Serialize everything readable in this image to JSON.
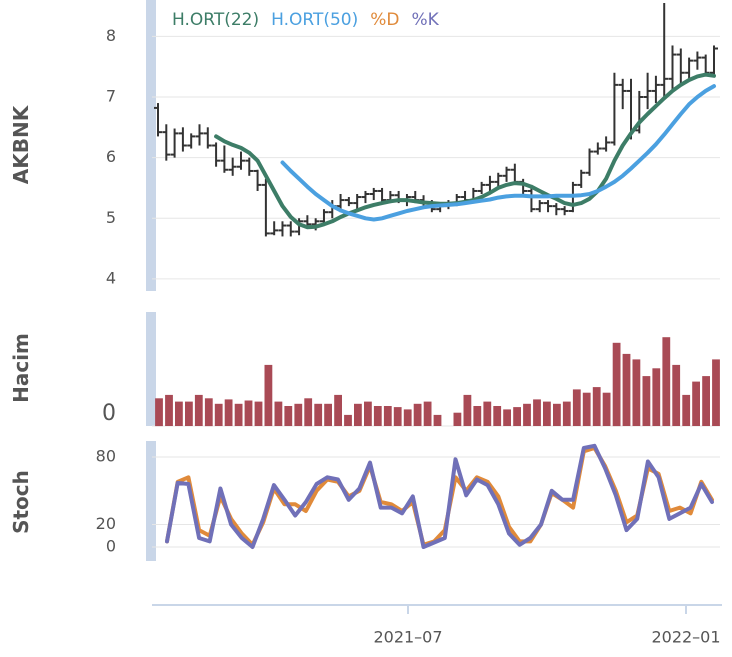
{
  "chart_data": [
    {
      "type": "ohlc",
      "panel": "price",
      "ylabel": "AKBNK",
      "yticks": [
        "8",
        "7",
        "6",
        "5",
        "4"
      ],
      "ylim": [
        3.8,
        8.6
      ],
      "legend": [
        {
          "label": "H.ORT(22)",
          "color": "#3d7d67"
        },
        {
          "label": "H.ORT(50)",
          "color": "#4ba0e0"
        },
        {
          "label": "%D",
          "color": "#e08a3a"
        },
        {
          "label": "%K",
          "color": "#7070b8"
        }
      ],
      "legend_position": "top-left",
      "bar_color": "#333333",
      "bars": [
        [
          6.82,
          6.9,
          6.35,
          6.42
        ],
        [
          6.42,
          6.55,
          5.95,
          6.05
        ],
        [
          6.05,
          6.48,
          6.0,
          6.4
        ],
        [
          6.4,
          6.5,
          6.1,
          6.2
        ],
        [
          6.2,
          6.4,
          6.15,
          6.35
        ],
        [
          6.35,
          6.55,
          6.2,
          6.4
        ],
        [
          6.4,
          6.5,
          6.15,
          6.2
        ],
        [
          6.2,
          6.25,
          5.85,
          5.95
        ],
        [
          5.95,
          6.2,
          5.75,
          5.8
        ],
        [
          5.8,
          6.0,
          5.7,
          5.85
        ],
        [
          5.85,
          6.1,
          5.8,
          5.95
        ],
        [
          5.95,
          6.0,
          5.7,
          5.78
        ],
        [
          5.78,
          5.8,
          5.45,
          5.55
        ],
        [
          5.55,
          5.65,
          4.7,
          4.75
        ],
        [
          4.75,
          4.95,
          4.72,
          4.8
        ],
        [
          4.8,
          4.95,
          4.7,
          4.88
        ],
        [
          4.88,
          4.95,
          4.7,
          4.78
        ],
        [
          4.78,
          5.0,
          4.72,
          4.95
        ],
        [
          4.95,
          5.05,
          4.85,
          4.9
        ],
        [
          4.9,
          5.0,
          4.8,
          4.95
        ],
        [
          4.95,
          5.15,
          4.9,
          5.1
        ],
        [
          5.1,
          5.3,
          5.0,
          5.2
        ],
        [
          5.2,
          5.4,
          5.1,
          5.3
        ],
        [
          5.3,
          5.35,
          5.2,
          5.25
        ],
        [
          5.25,
          5.4,
          5.15,
          5.35
        ],
        [
          5.35,
          5.45,
          5.25,
          5.4
        ],
        [
          5.4,
          5.5,
          5.3,
          5.45
        ],
        [
          5.45,
          5.5,
          5.25,
          5.3
        ],
        [
          5.3,
          5.45,
          5.25,
          5.38
        ],
        [
          5.38,
          5.45,
          5.25,
          5.3
        ],
        [
          5.3,
          5.4,
          5.2,
          5.35
        ],
        [
          5.35,
          5.45,
          5.25,
          5.3
        ],
        [
          5.3,
          5.38,
          5.2,
          5.25
        ],
        [
          5.25,
          5.3,
          5.1,
          5.15
        ],
        [
          5.15,
          5.25,
          5.1,
          5.2
        ],
        [
          5.2,
          5.3,
          5.15,
          5.25
        ],
        [
          5.25,
          5.4,
          5.2,
          5.35
        ],
        [
          5.35,
          5.45,
          5.25,
          5.3
        ],
        [
          5.3,
          5.5,
          5.25,
          5.45
        ],
        [
          5.45,
          5.6,
          5.4,
          5.55
        ],
        [
          5.55,
          5.7,
          5.45,
          5.6
        ],
        [
          5.6,
          5.75,
          5.5,
          5.7
        ],
        [
          5.7,
          5.85,
          5.6,
          5.8
        ],
        [
          5.8,
          5.9,
          5.55,
          5.6
        ],
        [
          5.6,
          5.65,
          5.35,
          5.45
        ],
        [
          5.45,
          5.55,
          5.1,
          5.15
        ],
        [
          5.15,
          5.3,
          5.1,
          5.25
        ],
        [
          5.25,
          5.3,
          5.1,
          5.2
        ],
        [
          5.2,
          5.25,
          5.05,
          5.15
        ],
        [
          5.15,
          5.2,
          5.05,
          5.12
        ],
        [
          5.12,
          5.6,
          5.1,
          5.55
        ],
        [
          5.55,
          5.8,
          5.5,
          5.75
        ],
        [
          5.75,
          6.15,
          5.7,
          6.1
        ],
        [
          6.1,
          6.25,
          6.05,
          6.15
        ],
        [
          6.15,
          6.35,
          6.1,
          6.25
        ],
        [
          6.25,
          7.4,
          6.2,
          7.2
        ],
        [
          7.2,
          7.3,
          6.8,
          7.1
        ],
        [
          7.1,
          7.3,
          6.3,
          6.45
        ],
        [
          6.45,
          7.1,
          6.4,
          7.0
        ],
        [
          7.0,
          7.4,
          6.8,
          7.1
        ],
        [
          7.1,
          7.35,
          6.9,
          7.2
        ],
        [
          7.2,
          8.55,
          7.0,
          7.3
        ],
        [
          7.3,
          7.85,
          7.1,
          7.7
        ],
        [
          7.7,
          7.8,
          7.2,
          7.4
        ],
        [
          7.4,
          7.65,
          7.3,
          7.6
        ],
        [
          7.6,
          7.75,
          7.45,
          7.65
        ],
        [
          7.65,
          7.7,
          7.35,
          7.4
        ],
        [
          7.4,
          7.85,
          7.35,
          7.8
        ]
      ],
      "ma22": [
        null,
        null,
        null,
        null,
        null,
        null,
        null,
        6.35,
        6.27,
        6.21,
        6.16,
        6.08,
        5.95,
        5.7,
        5.45,
        5.2,
        5.02,
        4.9,
        4.85,
        4.86,
        4.9,
        4.95,
        5.02,
        5.08,
        5.13,
        5.18,
        5.22,
        5.25,
        5.28,
        5.3,
        5.3,
        5.28,
        5.26,
        5.25,
        5.24,
        5.24,
        5.25,
        5.27,
        5.3,
        5.35,
        5.42,
        5.5,
        5.55,
        5.58,
        5.57,
        5.52,
        5.45,
        5.38,
        5.32,
        5.25,
        5.22,
        5.25,
        5.32,
        5.45,
        5.65,
        5.95,
        6.2,
        6.4,
        6.58,
        6.72,
        6.85,
        6.98,
        7.1,
        7.2,
        7.28,
        7.34,
        7.37,
        7.35
      ],
      "ma50": [
        null,
        null,
        null,
        null,
        null,
        null,
        null,
        null,
        null,
        null,
        null,
        null,
        null,
        null,
        null,
        5.92,
        5.78,
        5.65,
        5.52,
        5.4,
        5.3,
        5.2,
        5.13,
        5.08,
        5.04,
        5.0,
        4.98,
        5.0,
        5.04,
        5.08,
        5.12,
        5.15,
        5.18,
        5.2,
        5.21,
        5.22,
        5.23,
        5.25,
        5.27,
        5.29,
        5.31,
        5.34,
        5.36,
        5.37,
        5.37,
        5.36,
        5.36,
        5.36,
        5.37,
        5.37,
        5.37,
        5.38,
        5.4,
        5.45,
        5.52,
        5.6,
        5.7,
        5.82,
        5.95,
        6.08,
        6.22,
        6.38,
        6.55,
        6.72,
        6.88,
        7.0,
        7.1,
        7.18
      ]
    },
    {
      "type": "bar",
      "panel": "volume",
      "ylabel": "Hacim",
      "yticks": [
        "0"
      ],
      "ylim": [
        0,
        100
      ],
      "bar_color": "#a94a55",
      "values": [
        25,
        28,
        22,
        22,
        28,
        25,
        20,
        24,
        20,
        23,
        22,
        55,
        22,
        18,
        20,
        25,
        20,
        20,
        28,
        10,
        20,
        22,
        18,
        18,
        17,
        15,
        20,
        22,
        10,
        0,
        12,
        28,
        18,
        22,
        18,
        15,
        17,
        20,
        24,
        22,
        20,
        22,
        33,
        30,
        35,
        30,
        75,
        65,
        60,
        45,
        52,
        80,
        55,
        28,
        40,
        45,
        60
      ]
    },
    {
      "type": "line",
      "panel": "stochastic",
      "ylabel": "Stoch",
      "yticks": [
        "80",
        "20",
        "0"
      ],
      "ylim": [
        0,
        100
      ],
      "series": [
        {
          "name": "%D",
          "color": "#e08a3a",
          "values": [
            5,
            58,
            62,
            15,
            10,
            45,
            25,
            12,
            2,
            22,
            52,
            38,
            38,
            32,
            50,
            60,
            58,
            45,
            50,
            72,
            40,
            38,
            32,
            40,
            2,
            5,
            15,
            62,
            50,
            62,
            58,
            45,
            18,
            5,
            5,
            20,
            48,
            42,
            35,
            85,
            88,
            72,
            50,
            22,
            28,
            70,
            65,
            32,
            35,
            30,
            58,
            42
          ]
        },
        {
          "name": "%K",
          "color": "#7070b8",
          "values": [
            5,
            57,
            56,
            8,
            5,
            52,
            20,
            8,
            0,
            25,
            55,
            42,
            28,
            40,
            56,
            62,
            60,
            42,
            52,
            75,
            35,
            35,
            30,
            45,
            0,
            4,
            8,
            78,
            46,
            60,
            55,
            38,
            12,
            2,
            8,
            20,
            50,
            42,
            42,
            88,
            90,
            70,
            46,
            15,
            25,
            76,
            62,
            25,
            30,
            35,
            56,
            40
          ]
        }
      ]
    },
    {
      "type": "axis",
      "panel": "time",
      "xticks": [
        "2021–07",
        "2022–01"
      ]
    }
  ]
}
